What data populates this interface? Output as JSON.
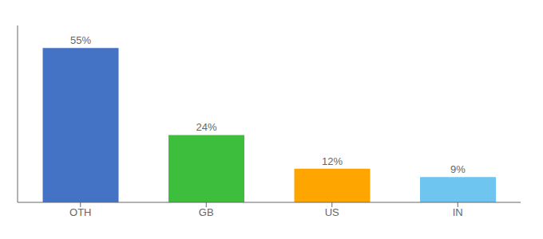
{
  "chart_data": {
    "type": "bar",
    "categories": [
      "OTH",
      "GB",
      "US",
      "IN"
    ],
    "values": [
      55,
      24,
      12,
      9
    ],
    "value_labels": [
      "55%",
      "24%",
      "12%",
      "9%"
    ],
    "colors": [
      "#4472C4",
      "#3DBF3D",
      "#FFA500",
      "#6EC6F0"
    ],
    "ylim": [
      0,
      63
    ],
    "grid": false,
    "data_labels": true,
    "tick_labels": "x"
  }
}
